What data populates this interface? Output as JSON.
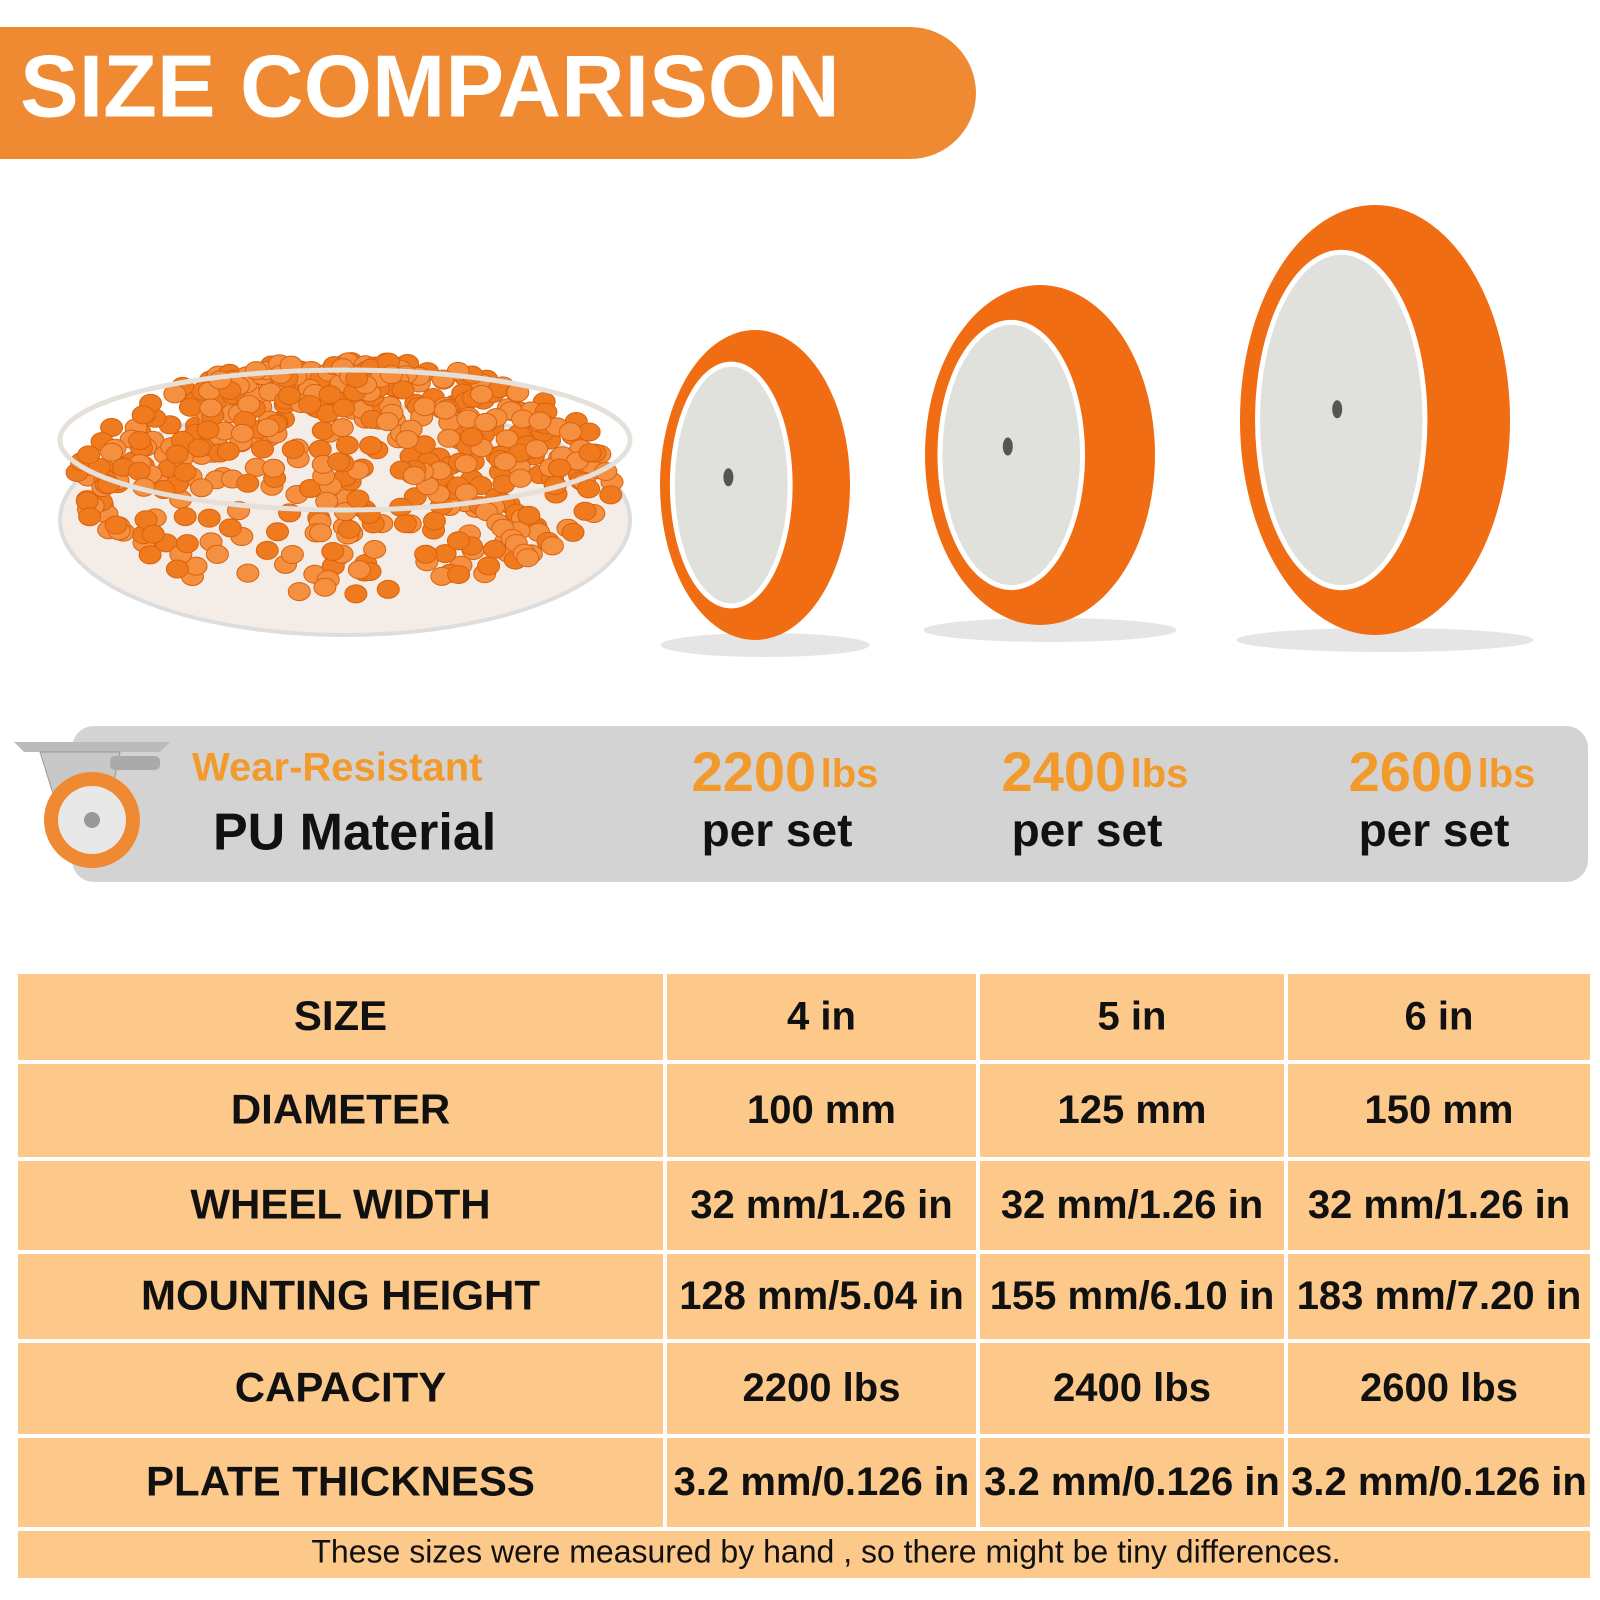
{
  "header": {
    "title": "SIZE COMPARISON"
  },
  "banner": {
    "material": [
      "Wear-Resistant",
      "PU Material"
    ],
    "loads": [
      {
        "amount": "2200",
        "unit": "lbs",
        "per": "per set"
      },
      {
        "amount": "2400",
        "unit": "lbs",
        "per": "per set"
      },
      {
        "amount": "2600",
        "unit": "lbs",
        "per": "per set"
      }
    ]
  },
  "table": {
    "rows": [
      [
        "SIZE",
        "4 in",
        "5 in",
        "6 in"
      ],
      [
        "DIAMETER",
        "100 mm",
        "125 mm",
        "150 mm"
      ],
      [
        "WHEEL WIDTH",
        "32 mm/1.26 in",
        "32 mm/1.26 in",
        "32 mm/1.26 in"
      ],
      [
        "MOUNTING HEIGHT",
        "128 mm/5.04 in",
        "155 mm/6.10 in",
        "183 mm/7.20 in"
      ],
      [
        "CAPACITY",
        "2200 lbs",
        "2400 lbs",
        "2600 lbs"
      ],
      [
        "PLATE THICKNESS",
        "3.2 mm/0.126 in",
        "3.2 mm/0.126 in",
        "3.2 mm/0.126 in"
      ]
    ]
  },
  "footnote": "These sizes were  measured by hand , so there might be tiny differences."
}
